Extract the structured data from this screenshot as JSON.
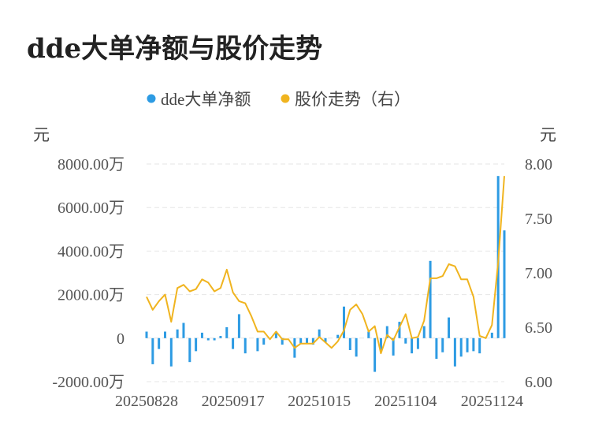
{
  "title": "dde大单净额与股价走势",
  "chart_data": {
    "type": "bar+line",
    "legend_position": "top-center",
    "legend": [
      {
        "name": "dde大单净额",
        "color": "#2d9be3",
        "marker": "circle"
      },
      {
        "name": "股价走势（右）",
        "color": "#f0b41f",
        "marker": "circle"
      }
    ],
    "y_left": {
      "unit_label": "元",
      "min": -2000,
      "max": 8000,
      "ticks": [
        8000,
        6000,
        4000,
        2000,
        0,
        -2000
      ],
      "tick_labels": [
        "8000.00万",
        "6000.00万",
        "4000.00万",
        "2000.00万",
        "0",
        "-2000.00万"
      ]
    },
    "y_right": {
      "unit_label": "元",
      "min": 6.0,
      "max": 8.0,
      "ticks": [
        8.0,
        7.5,
        7.0,
        6.5,
        6.0
      ],
      "tick_labels": [
        "8.00",
        "7.50",
        "7.00",
        "6.50",
        "6.00"
      ]
    },
    "x_tick_labels": [
      "20250828",
      "20250917",
      "20251015",
      "20251104",
      "20251124"
    ],
    "x_tick_index": [
      0,
      14,
      28,
      42,
      56
    ],
    "grid": true,
    "bar_color": "#2d9be3",
    "line_color": "#f0b41f",
    "series": [
      {
        "name": "dde大单净额",
        "type": "bar",
        "axis": "left",
        "values": [
          300,
          -1200,
          -500,
          300,
          -1300,
          400,
          700,
          -1100,
          -600,
          250,
          -100,
          -100,
          100,
          500,
          -500,
          1100,
          -700,
          0,
          -600,
          -300,
          0,
          300,
          -300,
          0,
          -900,
          -250,
          -250,
          -300,
          400,
          -200,
          0,
          150,
          1450,
          -550,
          -850,
          0,
          300,
          -1550,
          -650,
          550,
          -800,
          750,
          -250,
          -700,
          -500,
          550,
          3550,
          -950,
          -650,
          950,
          -1300,
          -850,
          -650,
          -600,
          -700,
          0,
          250,
          7450,
          4950
        ]
      },
      {
        "name": "股价走势（右）",
        "type": "line",
        "axis": "right",
        "values": [
          6.78,
          6.66,
          6.74,
          6.8,
          6.55,
          6.86,
          6.89,
          6.83,
          6.85,
          6.94,
          6.91,
          6.83,
          6.86,
          7.03,
          6.82,
          6.74,
          6.72,
          6.6,
          6.46,
          6.46,
          6.39,
          6.46,
          6.39,
          6.39,
          6.31,
          6.35,
          6.35,
          6.35,
          6.41,
          6.36,
          6.31,
          6.37,
          6.47,
          6.66,
          6.71,
          6.62,
          6.46,
          6.51,
          6.26,
          6.43,
          6.38,
          6.5,
          6.62,
          6.4,
          6.41,
          6.56,
          6.95,
          6.95,
          6.97,
          7.08,
          7.06,
          6.94,
          6.94,
          6.78,
          6.42,
          6.4,
          6.52,
          7.1,
          7.89
        ]
      }
    ]
  }
}
